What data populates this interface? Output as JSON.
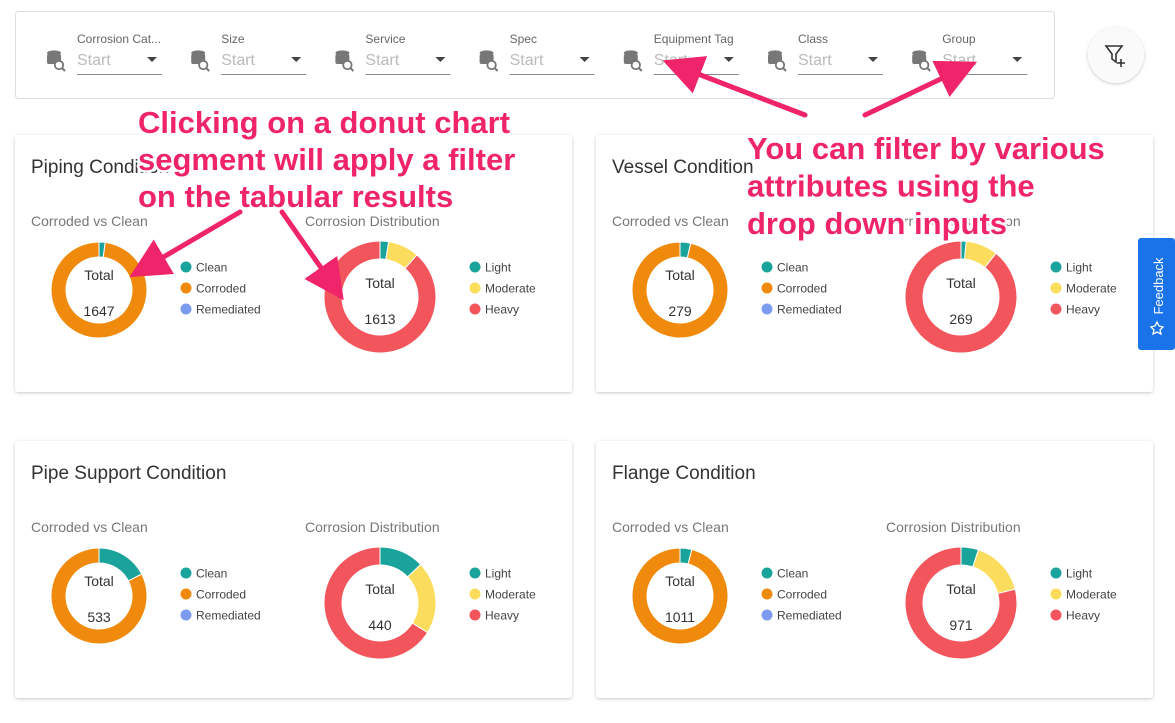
{
  "filters": [
    {
      "label": "Corrosion Cat...",
      "placeholder": "Start"
    },
    {
      "label": "Size",
      "placeholder": "Start"
    },
    {
      "label": "Service",
      "placeholder": "Start"
    },
    {
      "label": "Spec",
      "placeholder": "Start"
    },
    {
      "label": "Equipment Tag",
      "placeholder": "Start"
    },
    {
      "label": "Class",
      "placeholder": "Start"
    },
    {
      "label": "Group",
      "placeholder": "Start"
    }
  ],
  "feedback": "Feedback",
  "annotations": {
    "left": [
      "Clicking on a donut chart",
      "segment will apply a filter",
      "on the tabular results"
    ],
    "right": [
      "You can filter by various",
      "attributes using the",
      "drop down inputs"
    ]
  },
  "cards": [
    {
      "title": "Piping Condition",
      "charts": [
        {
          "subtitle": "Corroded vs Clean",
          "center_label": "Total",
          "total": 1647,
          "segments": [
            {
              "name": "Clean",
              "color": "#1aa39b",
              "value": 34
            },
            {
              "name": "Corroded",
              "color": "#f08a0c",
              "value": 1613
            },
            {
              "name": "Remediated",
              "color": "#7d9cf0",
              "value": 0
            }
          ]
        },
        {
          "subtitle": "Corrosion Distribution",
          "center_label": "Total",
          "total": 1613,
          "segments": [
            {
              "name": "Light",
              "color": "#1aa39b",
              "value": 40
            },
            {
              "name": "Moderate",
              "color": "#fcdc5c",
              "value": 145
            },
            {
              "name": "Heavy",
              "color": "#f2555b",
              "value": 1428
            }
          ]
        }
      ]
    },
    {
      "title": "Vessel Condition",
      "charts": [
        {
          "subtitle": "Corroded vs Clean",
          "center_label": "Total",
          "total": 279,
          "segments": [
            {
              "name": "Clean",
              "color": "#1aa39b",
              "value": 10
            },
            {
              "name": "Corroded",
              "color": "#f08a0c",
              "value": 269
            },
            {
              "name": "Remediated",
              "color": "#7d9cf0",
              "value": 0
            }
          ]
        },
        {
          "subtitle": "Corrosion Distribution",
          "center_label": "Total",
          "total": 269,
          "segments": [
            {
              "name": "Light",
              "color": "#1aa39b",
              "value": 4
            },
            {
              "name": "Moderate",
              "color": "#fcdc5c",
              "value": 25
            },
            {
              "name": "Heavy",
              "color": "#f2555b",
              "value": 240
            }
          ]
        }
      ]
    },
    {
      "title": "Pipe Support Condition",
      "charts": [
        {
          "subtitle": "Corroded vs Clean",
          "center_label": "Total",
          "total": 533,
          "segments": [
            {
              "name": "Clean",
              "color": "#1aa39b",
              "value": 93
            },
            {
              "name": "Corroded",
              "color": "#f08a0c",
              "value": 440
            },
            {
              "name": "Remediated",
              "color": "#7d9cf0",
              "value": 0
            }
          ]
        },
        {
          "subtitle": "Corrosion Distribution",
          "center_label": "Total",
          "total": 440,
          "segments": [
            {
              "name": "Light",
              "color": "#1aa39b",
              "value": 57
            },
            {
              "name": "Moderate",
              "color": "#fcdc5c",
              "value": 92
            },
            {
              "name": "Heavy",
              "color": "#f2555b",
              "value": 291
            }
          ]
        }
      ]
    },
    {
      "title": "Flange Condition",
      "charts": [
        {
          "subtitle": "Corroded vs Clean",
          "center_label": "Total",
          "total": 1011,
          "segments": [
            {
              "name": "Clean",
              "color": "#1aa39b",
              "value": 40
            },
            {
              "name": "Corroded",
              "color": "#f08a0c",
              "value": 971
            },
            {
              "name": "Remediated",
              "color": "#7d9cf0",
              "value": 0
            }
          ]
        },
        {
          "subtitle": "Corrosion Distribution",
          "center_label": "Total",
          "total": 971,
          "segments": [
            {
              "name": "Light",
              "color": "#1aa39b",
              "value": 49
            },
            {
              "name": "Moderate",
              "color": "#fcdc5c",
              "value": 155
            },
            {
              "name": "Heavy",
              "color": "#f2555b",
              "value": 767
            }
          ]
        }
      ]
    }
  ]
}
